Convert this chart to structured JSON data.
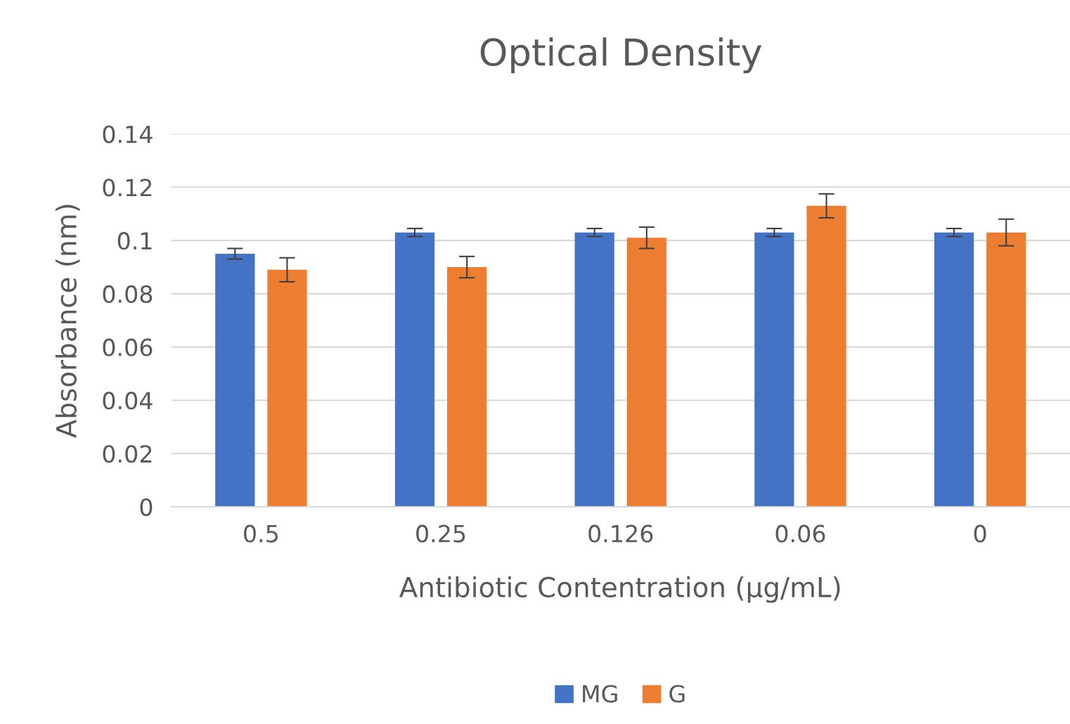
{
  "chart_data": {
    "type": "bar",
    "title": "Optical Density",
    "xlabel": "Antibiotic Contentration (µg/mL)",
    "ylabel": "Absorbance (nm)",
    "categories": [
      "0.5",
      "0.25",
      "0.126",
      "0.06",
      "0"
    ],
    "series": [
      {
        "name": "MG",
        "color": "#4472c4",
        "values": [
          0.095,
          0.103,
          0.103,
          0.103,
          0.103
        ],
        "errors": [
          0.002,
          0.0015,
          0.0015,
          0.0015,
          0.0015
        ]
      },
      {
        "name": "G",
        "color": "#ed7d31",
        "values": [
          0.089,
          0.09,
          0.101,
          0.113,
          0.103
        ],
        "errors": [
          0.0045,
          0.004,
          0.004,
          0.0045,
          0.005
        ]
      }
    ],
    "ylim": [
      0,
      0.14
    ],
    "yticks": [
      0,
      0.02,
      0.04,
      0.06,
      0.08,
      0.1,
      0.12,
      0.14
    ],
    "grid": "y",
    "legend": "bottom"
  }
}
